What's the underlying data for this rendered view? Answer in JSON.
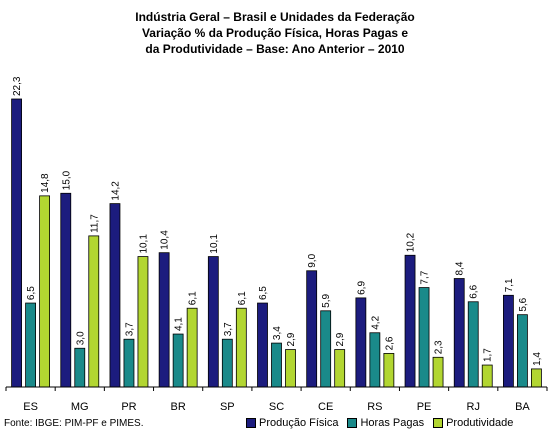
{
  "chart_data": {
    "type": "bar",
    "title_lines": [
      "Indústria Geral – Brasil e Unidades da Federação",
      "Variação % da Produção Física, Horas Pagas e",
      "da Produtividade – Base: Ano Anterior – 2010"
    ],
    "categories": [
      "ES",
      "MG",
      "PR",
      "BR",
      "SP",
      "SC",
      "CE",
      "RS",
      "PE",
      "RJ",
      "BA"
    ],
    "series": [
      {
        "name": "Produção Física",
        "color": "#1c1c7e",
        "values": [
          22.3,
          15.0,
          14.2,
          10.4,
          10.1,
          6.5,
          9.0,
          6.9,
          10.2,
          8.4,
          7.1
        ],
        "labels": [
          "22,3",
          "15,0",
          "14,2",
          "10,4",
          "10,1",
          "6,5",
          "9,0",
          "6,9",
          "10,2",
          "8,4",
          "7,1"
        ]
      },
      {
        "name": "Horas Pagas",
        "color": "#1a8a8a",
        "values": [
          6.5,
          3.0,
          3.7,
          4.1,
          3.7,
          3.4,
          5.9,
          4.2,
          7.7,
          6.6,
          5.6
        ],
        "labels": [
          "6,5",
          "3,0",
          "3,7",
          "4,1",
          "3,7",
          "3,4",
          "5,9",
          "4,2",
          "7,7",
          "6,6",
          "5,6"
        ]
      },
      {
        "name": "Produtividade",
        "color": "#b2d631",
        "values": [
          14.8,
          11.7,
          10.1,
          6.1,
          6.1,
          2.9,
          2.9,
          2.6,
          2.3,
          1.7,
          1.4
        ],
        "labels": [
          "14,8",
          "11,7",
          "10,1",
          "6,1",
          "6,1",
          "2,9",
          "2,9",
          "2,6",
          "2,3",
          "1,7",
          "1,4"
        ]
      }
    ],
    "ylim": [
      0,
      23
    ],
    "grid": false,
    "legend_position": "bottom-right"
  },
  "source_note": "Fonte: IBGE: PIM-PF e PIMES."
}
